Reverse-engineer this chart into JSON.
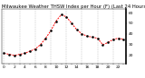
{
  "title": "Milwaukee Weather THSW Index per Hour (F) (Last 24 Hours)",
  "x_values": [
    0,
    1,
    2,
    3,
    4,
    5,
    6,
    7,
    8,
    9,
    10,
    11,
    12,
    13,
    14,
    15,
    16,
    17,
    18,
    19,
    20,
    21,
    22,
    23
  ],
  "y_values": [
    22,
    21,
    20,
    21,
    22,
    24,
    26,
    30,
    36,
    43,
    52,
    58,
    56,
    50,
    44,
    40,
    38,
    37,
    36,
    30,
    32,
    35,
    36,
    35
  ],
  "y_min": 12,
  "y_max": 63,
  "y_ticks": [
    20,
    30,
    40,
    50,
    60
  ],
  "line_color": "#ff0000",
  "marker_color": "#000000",
  "bg_color": "#ffffff",
  "plot_bg_color": "#ffffff",
  "grid_color": "#999999",
  "title_fontsize": 3.8,
  "tick_fontsize": 3.2,
  "grid_every": 3
}
